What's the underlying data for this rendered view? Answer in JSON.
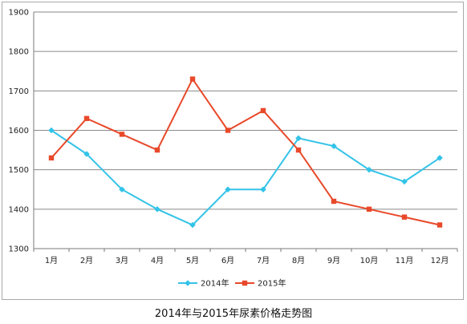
{
  "chart_data": {
    "type": "line",
    "title": "",
    "xlabel": "",
    "ylabel": "",
    "categories": [
      "1月",
      "2月",
      "3月",
      "4月",
      "5月",
      "6月",
      "7月",
      "8月",
      "9月",
      "10月",
      "11月",
      "12月"
    ],
    "ylim": [
      1300,
      1900
    ],
    "yticks": [
      1300,
      1400,
      1500,
      1600,
      1700,
      1800,
      1900
    ],
    "grid": true,
    "legend_position": "bottom",
    "series": [
      {
        "name": "2014年",
        "color": "#33c3e8",
        "marker": "diamond",
        "values": [
          1600,
          1540,
          1450,
          1400,
          1360,
          1450,
          1450,
          1580,
          1560,
          1500,
          1470,
          1530
        ]
      },
      {
        "name": "2015年",
        "color": "#e8492a",
        "marker": "square",
        "values": [
          1530,
          1630,
          1590,
          1550,
          1730,
          1600,
          1650,
          1550,
          1420,
          1400,
          1380,
          1360
        ]
      }
    ]
  },
  "caption": "2014年与2015年尿素价格走势图"
}
